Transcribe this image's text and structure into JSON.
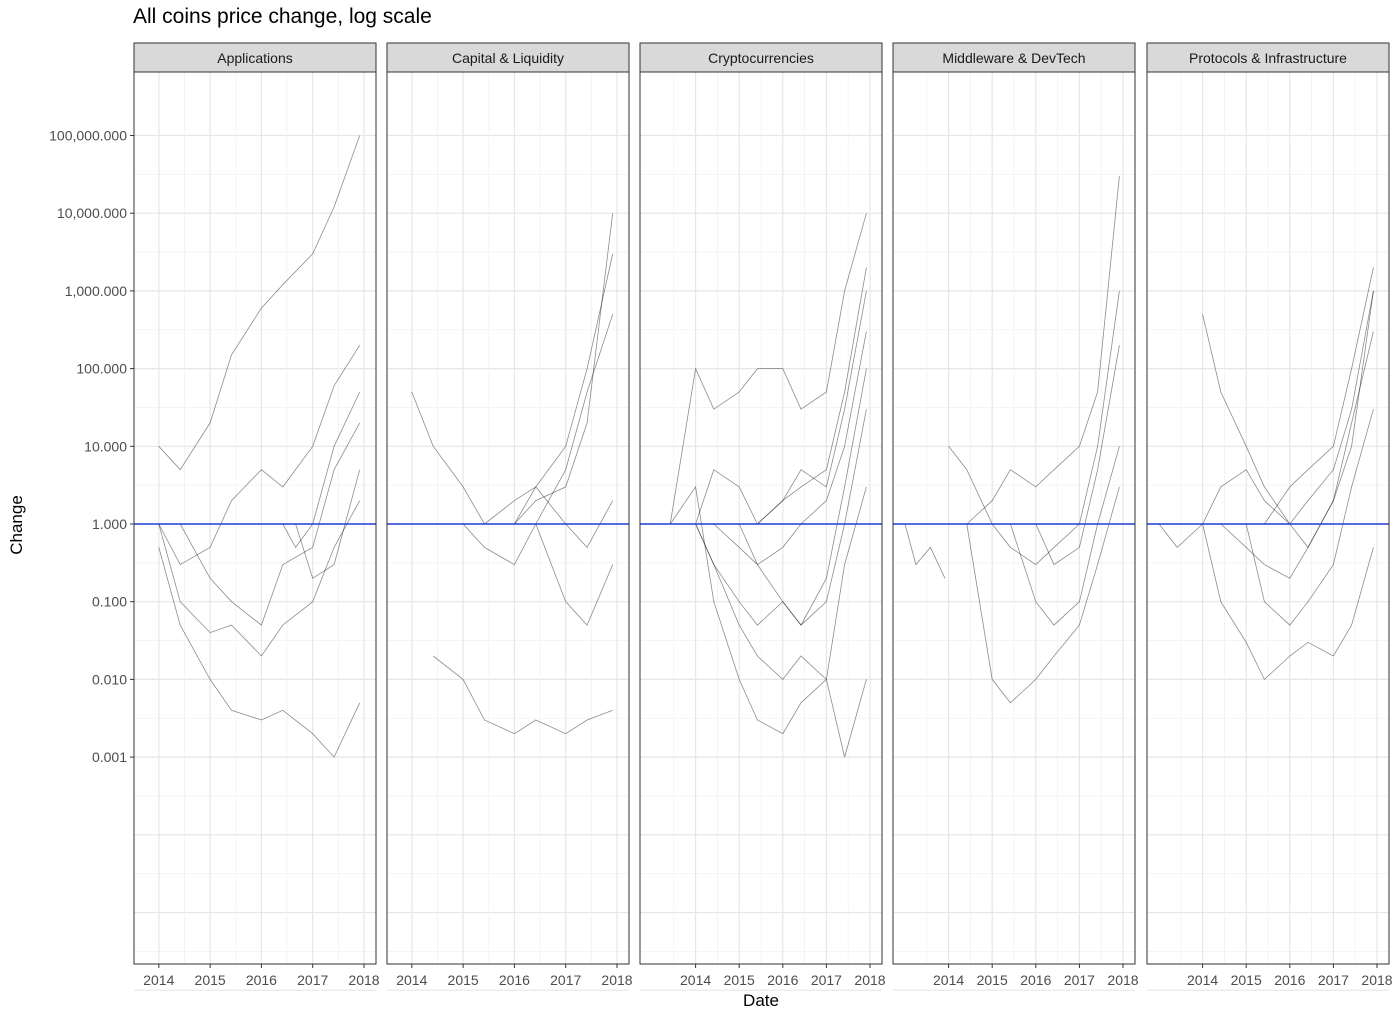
{
  "chart_data": {
    "type": "line",
    "title": "All coins price change, log scale",
    "xlabel": "Date",
    "ylabel": "Change",
    "y_scale": "log10",
    "y_ticks": [
      0.001,
      0.01,
      0.1,
      1,
      10,
      100,
      1000,
      10000,
      100000
    ],
    "y_tick_labels": [
      "0.001",
      "0.010",
      "0.100",
      "1.000",
      "10.000",
      "100.000",
      "1,000.000",
      "10,000.000",
      "100,000.000"
    ],
    "reference_line": {
      "y": 1,
      "color": "#1f3fd6"
    },
    "series_color": "#000000",
    "grid": true,
    "facets": [
      {
        "label": "Applications",
        "xlim": [
          "2013-10",
          "2018-01"
        ],
        "x_ticks": [
          "2014",
          "2015",
          "2016",
          "2017",
          "2018"
        ],
        "series": [
          {
            "x": [
              "2014-01",
              "2014-06",
              "2015-01",
              "2015-06",
              "2016-01",
              "2016-06",
              "2017-01",
              "2017-06",
              "2017-12"
            ],
            "y": [
              10,
              5,
              20,
              150,
              600,
              1200,
              3000,
              12000,
              100000
            ]
          },
          {
            "x": [
              "2014-01",
              "2014-06",
              "2015-01",
              "2015-06",
              "2016-01",
              "2016-06",
              "2017-01",
              "2017-06",
              "2017-12"
            ],
            "y": [
              1,
              0.3,
              0.5,
              2,
              5,
              3,
              10,
              60,
              200
            ]
          },
          {
            "x": [
              "2014-01",
              "2014-06",
              "2015-01",
              "2015-06",
              "2016-01",
              "2016-06",
              "2017-01",
              "2017-06",
              "2017-12"
            ],
            "y": [
              0.5,
              0.05,
              0.01,
              0.004,
              0.003,
              0.004,
              0.002,
              0.001,
              0.005
            ]
          },
          {
            "x": [
              "2014-01",
              "2014-06",
              "2015-01",
              "2015-06",
              "2016-01",
              "2016-06",
              "2017-01",
              "2017-06",
              "2017-12"
            ],
            "y": [
              1,
              0.1,
              0.04,
              0.05,
              0.02,
              0.05,
              0.1,
              0.5,
              2
            ]
          },
          {
            "x": [
              "2014-06",
              "2015-01",
              "2015-06",
              "2016-01",
              "2016-06",
              "2017-01",
              "2017-06",
              "2017-12"
            ],
            "y": [
              1,
              0.2,
              0.1,
              0.05,
              0.3,
              0.5,
              5,
              20
            ]
          },
          {
            "x": [
              "2016-06",
              "2016-09",
              "2017-01",
              "2017-06",
              "2017-12"
            ],
            "y": [
              1,
              0.5,
              1,
              10,
              50
            ]
          },
          {
            "x": [
              "2016-09",
              "2017-01",
              "2017-06",
              "2017-12"
            ],
            "y": [
              1,
              0.2,
              0.3,
              5
            ]
          }
        ]
      },
      {
        "label": "Capital & Liquidity",
        "xlim": [
          "2013-10",
          "2018-01"
        ],
        "x_ticks": [
          "2014",
          "2015",
          "2016",
          "2017",
          "2018"
        ],
        "series": [
          {
            "x": [
              "2014-01",
              "2014-06",
              "2015-01",
              "2015-06",
              "2016-01",
              "2016-06",
              "2017-01",
              "2017-06",
              "2017-12"
            ],
            "y": [
              50,
              10,
              3,
              1,
              1,
              2,
              3,
              20,
              10000
            ]
          },
          {
            "x": [
              "2014-06",
              "2015-01",
              "2015-06",
              "2016-01",
              "2016-06",
              "2017-01",
              "2017-06",
              "2017-12"
            ],
            "y": [
              0.02,
              0.01,
              0.003,
              0.002,
              0.003,
              0.002,
              0.003,
              0.004
            ]
          },
          {
            "x": [
              "2015-01",
              "2015-06",
              "2016-01",
              "2016-06",
              "2017-01",
              "2017-06",
              "2017-12"
            ],
            "y": [
              1,
              0.5,
              0.3,
              1,
              5,
              50,
              500
            ]
          },
          {
            "x": [
              "2015-06",
              "2016-01",
              "2016-06",
              "2017-01",
              "2017-06",
              "2017-12"
            ],
            "y": [
              1,
              2,
              3,
              1,
              0.5,
              2
            ]
          },
          {
            "x": [
              "2016-06",
              "2017-01",
              "2017-06",
              "2017-12"
            ],
            "y": [
              1,
              0.1,
              0.05,
              0.3
            ]
          },
          {
            "x": [
              "2016-01",
              "2016-06",
              "2017-01",
              "2017-06",
              "2017-12"
            ],
            "y": [
              1,
              3,
              10,
              100,
              3000
            ]
          }
        ]
      },
      {
        "label": "Cryptocurrencies",
        "xlim": [
          "2013-01",
          "2018-01"
        ],
        "x_ticks": [
          "2014",
          "2015",
          "2016",
          "2017",
          "2018"
        ],
        "series": [
          {
            "x": [
              "2013-06",
              "2014-01",
              "2014-06",
              "2015-01",
              "2015-06",
              "2016-01",
              "2016-06",
              "2017-01",
              "2017-06",
              "2017-12"
            ],
            "y": [
              1,
              100,
              30,
              50,
              100,
              100,
              30,
              50,
              1000,
              10000
            ]
          },
          {
            "x": [
              "2013-06",
              "2014-01",
              "2014-06",
              "2015-01",
              "2015-06",
              "2016-01",
              "2016-06",
              "2017-01",
              "2017-06",
              "2017-12"
            ],
            "y": [
              1,
              3,
              0.1,
              0.01,
              0.003,
              0.002,
              0.005,
              0.01,
              0.3,
              3
            ]
          },
          {
            "x": [
              "2013-06",
              "2014-01",
              "2014-06",
              "2015-01",
              "2015-06",
              "2016-01",
              "2016-06",
              "2017-01",
              "2017-06",
              "2017-12"
            ],
            "y": [
              1,
              1,
              0.3,
              0.1,
              0.05,
              0.1,
              0.05,
              0.2,
              3,
              100
            ]
          },
          {
            "x": [
              "2014-01",
              "2014-06",
              "2015-01",
              "2015-06",
              "2016-01",
              "2016-06",
              "2017-01",
              "2017-06",
              "2017-12"
            ],
            "y": [
              1,
              5,
              3,
              1,
              2,
              5,
              3,
              30,
              1000
            ]
          },
          {
            "x": [
              "2014-01",
              "2014-06",
              "2015-01",
              "2015-06",
              "2016-01",
              "2016-06",
              "2017-01",
              "2017-06",
              "2017-12"
            ],
            "y": [
              1,
              0.3,
              0.05,
              0.02,
              0.01,
              0.02,
              0.01,
              0.001,
              0.01
            ]
          },
          {
            "x": [
              "2014-06",
              "2015-01",
              "2015-06",
              "2016-01",
              "2016-06",
              "2017-01",
              "2017-06",
              "2017-12"
            ],
            "y": [
              1,
              0.5,
              0.3,
              0.5,
              1,
              2,
              10,
              300
            ]
          },
          {
            "x": [
              "2015-01",
              "2015-06",
              "2016-01",
              "2016-06",
              "2017-01",
              "2017-06",
              "2017-12"
            ],
            "y": [
              1,
              0.3,
              0.1,
              0.05,
              0.1,
              1,
              30
            ]
          },
          {
            "x": [
              "2015-06",
              "2016-01",
              "2016-06",
              "2017-01",
              "2017-06",
              "2017-12"
            ],
            "y": [
              1,
              2,
              3,
              5,
              50,
              2000
            ]
          }
        ]
      },
      {
        "label": "Middleware & DevTech",
        "xlim": [
          "2013-01",
          "2018-01"
        ],
        "x_ticks": [
          "2014",
          "2015",
          "2016",
          "2017",
          "2018"
        ],
        "series": [
          {
            "x": [
              "2013-01",
              "2013-04",
              "2013-08",
              "2013-12"
            ],
            "y": [
              1,
              0.3,
              0.5,
              0.2
            ]
          },
          {
            "x": [
              "2014-01",
              "2014-06",
              "2015-01",
              "2015-06",
              "2016-01",
              "2016-06",
              "2017-01",
              "2017-06",
              "2017-12"
            ],
            "y": [
              10,
              5,
              1,
              0.5,
              0.3,
              0.5,
              1,
              10,
              1000
            ]
          },
          {
            "x": [
              "2014-06",
              "2015-01",
              "2015-06",
              "2016-01",
              "2016-06",
              "2017-01",
              "2017-06",
              "2017-12"
            ],
            "y": [
              1,
              0.01,
              0.005,
              0.01,
              0.02,
              0.05,
              0.3,
              3
            ]
          },
          {
            "x": [
              "2014-06",
              "2015-01",
              "2015-06",
              "2016-01",
              "2016-06",
              "2017-01",
              "2017-06",
              "2017-12"
            ],
            "y": [
              1,
              2,
              5,
              3,
              5,
              10,
              50,
              30000
            ]
          },
          {
            "x": [
              "2015-06",
              "2016-01",
              "2016-06",
              "2017-01",
              "2017-06",
              "2017-12"
            ],
            "y": [
              1,
              0.1,
              0.05,
              0.1,
              1,
              10
            ]
          },
          {
            "x": [
              "2016-01",
              "2016-06",
              "2017-01",
              "2017-06",
              "2017-12"
            ],
            "y": [
              1,
              0.3,
              0.5,
              5,
              200
            ]
          }
        ]
      },
      {
        "label": "Protocols & Infrastructure",
        "xlim": [
          "2013-01",
          "2018-01"
        ],
        "x_ticks": [
          "2014",
          "2015",
          "2016",
          "2017",
          "2018"
        ],
        "series": [
          {
            "x": [
              "2013-01",
              "2013-06",
              "2014-01",
              "2014-06",
              "2015-01",
              "2015-06",
              "2016-01",
              "2016-06",
              "2017-01",
              "2017-06",
              "2017-12"
            ],
            "y": [
              1,
              0.5,
              1,
              3,
              5,
              2,
              1,
              0.5,
              2,
              20,
              300
            ]
          },
          {
            "x": [
              "2014-01",
              "2014-06",
              "2015-01",
              "2015-06",
              "2016-01",
              "2016-06",
              "2017-01",
              "2017-06",
              "2017-12"
            ],
            "y": [
              500,
              50,
              10,
              3,
              1,
              2,
              5,
              30,
              1000
            ]
          },
          {
            "x": [
              "2014-01",
              "2014-06",
              "2015-01",
              "2015-06",
              "2016-01",
              "2016-06",
              "2017-01",
              "2017-06",
              "2017-12"
            ],
            "y": [
              1,
              0.1,
              0.03,
              0.01,
              0.02,
              0.03,
              0.02,
              0.05,
              0.5
            ]
          },
          {
            "x": [
              "2014-06",
              "2015-01",
              "2015-06",
              "2016-01",
              "2016-06",
              "2017-01",
              "2017-06",
              "2017-12"
            ],
            "y": [
              1,
              0.5,
              0.3,
              0.2,
              0.5,
              2,
              10,
              1000
            ]
          },
          {
            "x": [
              "2015-01",
              "2015-06",
              "2016-01",
              "2016-06",
              "2017-01",
              "2017-06",
              "2017-12"
            ],
            "y": [
              1,
              0.1,
              0.05,
              0.1,
              0.3,
              3,
              30
            ]
          },
          {
            "x": [
              "2015-06",
              "2016-01",
              "2016-06",
              "2017-01",
              "2017-06",
              "2017-12"
            ],
            "y": [
              1,
              3,
              5,
              10,
              100,
              2000
            ]
          }
        ]
      }
    ]
  }
}
